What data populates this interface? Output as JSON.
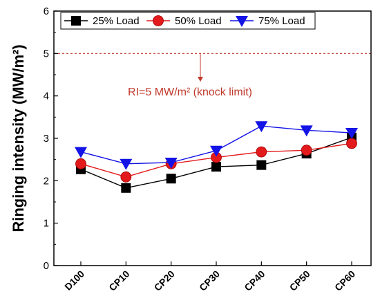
{
  "chart_data": {
    "type": "line",
    "categories": [
      "D100",
      "CP10",
      "CP20",
      "CP30",
      "CP40",
      "CP50",
      "CP60"
    ],
    "series": [
      {
        "name": "25% Load",
        "values": [
          2.27,
          1.83,
          2.05,
          2.33,
          2.37,
          2.64,
          3.02
        ],
        "color": "#000000",
        "marker": "square"
      },
      {
        "name": "50% Load",
        "values": [
          2.4,
          2.09,
          2.4,
          2.55,
          2.68,
          2.72,
          2.88
        ],
        "color": "#e31a1c",
        "marker": "circle"
      },
      {
        "name": "75% Load",
        "values": [
          2.68,
          2.4,
          2.43,
          2.71,
          3.29,
          3.19,
          3.13
        ],
        "color": "#1414e6",
        "marker": "triangle-down"
      }
    ],
    "ylabel": "Ringing intensity (MW/m²)",
    "xlabel": "",
    "ylim": [
      0,
      6
    ],
    "yticks": [
      "0",
      "1",
      "2",
      "3",
      "4",
      "5",
      "6"
    ],
    "reference_line": {
      "y": 5,
      "color": "#c0392b",
      "style": "dashed"
    },
    "annotation": "RI=5 MW/m² (knock limit)",
    "legend_position": "top",
    "grid": false
  }
}
